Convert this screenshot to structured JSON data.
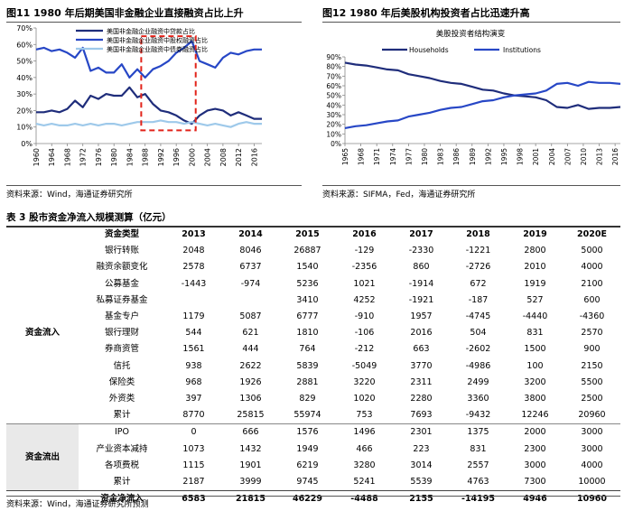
{
  "fig11": {
    "title": "图11 1980 年后期美国非金融企业直接融资占比上升",
    "source": "资料来源：Wind，海通证券研究所",
    "chart_data": {
      "type": "line",
      "x": [
        1960,
        1962,
        1964,
        1966,
        1968,
        1970,
        1972,
        1974,
        1976,
        1978,
        1980,
        1982,
        1984,
        1986,
        1988,
        1990,
        1992,
        1994,
        1996,
        1998,
        2000,
        2002,
        2004,
        2006,
        2008,
        2010,
        2012,
        2014,
        2016,
        2018
      ],
      "x_tick_labels": [
        "1960",
        "1964",
        "1968",
        "1972",
        "1976",
        "1980",
        "1984",
        "1988",
        "1992",
        "1996",
        "2000",
        "2004",
        "2008",
        "2012",
        "2016"
      ],
      "y_tick_labels": [
        "0%",
        "10%",
        "20%",
        "30%",
        "40%",
        "50%",
        "60%",
        "70%"
      ],
      "ylim": [
        0,
        70
      ],
      "series": [
        {
          "name": "美国非金融企业融资中贷款占比",
          "color": "#1f2d7b",
          "values": [
            19,
            19,
            20,
            19,
            21,
            26,
            22,
            29,
            27,
            30,
            29,
            29,
            34,
            28,
            30,
            24,
            20,
            19,
            17,
            14,
            12,
            17,
            20,
            21,
            20,
            17,
            19,
            17,
            15,
            15
          ]
        },
        {
          "name": "美国非金融企业融资中股权融资占比",
          "color": "#2747c6",
          "values": [
            57,
            58,
            56,
            57,
            55,
            52,
            58,
            44,
            46,
            43,
            43,
            48,
            40,
            45,
            40,
            45,
            47,
            50,
            55,
            58,
            62,
            50,
            48,
            46,
            52,
            55,
            54,
            56,
            57,
            57
          ]
        },
        {
          "name": "美国非金融企业融资中债券融资占比",
          "color": "#9ec9ea",
          "values": [
            12,
            11,
            12,
            11,
            11,
            12,
            11,
            12,
            11,
            12,
            12,
            11,
            12,
            13,
            13,
            13,
            14,
            13,
            13,
            12,
            13,
            12,
            11,
            12,
            11,
            10,
            12,
            13,
            12,
            12
          ]
        }
      ],
      "highlight": {
        "from": 1987,
        "to": 2001,
        "color": "#e2231a"
      }
    }
  },
  "fig12": {
    "title": "图12 1980 年后美股机构投资者占比迅速升高",
    "source": "资料来源：SIFMA，Fed，海通证券研究所",
    "chart_data": {
      "type": "line",
      "title": "美股投资者结构演变",
      "x": [
        1965,
        1967,
        1969,
        1971,
        1973,
        1975,
        1977,
        1979,
        1981,
        1983,
        1985,
        1987,
        1989,
        1991,
        1993,
        1995,
        1997,
        1999,
        2001,
        2003,
        2005,
        2007,
        2009,
        2011,
        2013,
        2015,
        2017
      ],
      "x_tick_labels": [
        "1965",
        "1968",
        "1971",
        "1974",
        "1977",
        "1980",
        "1983",
        "1986",
        "1989",
        "1992",
        "1995",
        "1998",
        "2001",
        "2004",
        "2007",
        "2010",
        "2013",
        "2016"
      ],
      "y_tick_labels": [
        "0%",
        "10%",
        "20%",
        "30%",
        "40%",
        "50%",
        "60%",
        "70%",
        "80%",
        "90%"
      ],
      "ylim": [
        0,
        90
      ],
      "series": [
        {
          "name": "Households",
          "color": "#1f2d7b",
          "values": [
            84,
            82,
            81,
            79,
            77,
            76,
            72,
            70,
            68,
            65,
            63,
            62,
            59,
            56,
            55,
            52,
            50,
            49,
            48,
            45,
            38,
            37,
            40,
            36,
            37,
            37,
            38
          ]
        },
        {
          "name": "Institutions",
          "color": "#2747c6",
          "values": [
            16,
            18,
            19,
            21,
            23,
            24,
            28,
            30,
            32,
            35,
            37,
            38,
            41,
            44,
            45,
            48,
            50,
            51,
            52,
            55,
            62,
            63,
            60,
            64,
            63,
            63,
            62
          ]
        }
      ]
    }
  },
  "table3": {
    "title": "表 3 股市资金净流入规模测算（亿元）",
    "source": "资料来源：Wind，海通证券研究所预测",
    "header": [
      "资金类型",
      "2013",
      "2014",
      "2015",
      "2016",
      "2017",
      "2018",
      "2019",
      "2020E"
    ],
    "groups": {
      "inflow": "资金流入",
      "outflow": "资金流出"
    },
    "inflow_rows": [
      {
        "label": "银行转账",
        "values": [
          "2048",
          "8046",
          "26887",
          "-129",
          "-2330",
          "-1221",
          "2800",
          "5000"
        ]
      },
      {
        "label": "融资余额变化",
        "values": [
          "2578",
          "6737",
          "1540",
          "-2356",
          "860",
          "-2726",
          "2010",
          "4000"
        ]
      },
      {
        "label": "公募基金",
        "values": [
          "-1443",
          "-974",
          "5236",
          "1021",
          "-1914",
          "672",
          "1919",
          "2100"
        ]
      },
      {
        "label": "私募证券基金",
        "values": [
          "",
          "",
          "3410",
          "4252",
          "-1921",
          "-187",
          "527",
          "600"
        ]
      },
      {
        "label": "基金专户",
        "values": [
          "1179",
          "5087",
          "6777",
          "-910",
          "1957",
          "-4745",
          "-4440",
          "-4360"
        ]
      },
      {
        "label": "银行理财",
        "values": [
          "544",
          "621",
          "1810",
          "-106",
          "2016",
          "504",
          "831",
          "2570"
        ]
      },
      {
        "label": "券商资管",
        "values": [
          "1561",
          "444",
          "764",
          "-212",
          "663",
          "-2602",
          "1500",
          "900"
        ]
      },
      {
        "label": "信托",
        "values": [
          "938",
          "2622",
          "5839",
          "-5049",
          "3770",
          "-4986",
          "100",
          "2150"
        ]
      },
      {
        "label": "保险类",
        "values": [
          "968",
          "1926",
          "2881",
          "3220",
          "2311",
          "2499",
          "3200",
          "5500"
        ]
      },
      {
        "label": "外资类",
        "values": [
          "397",
          "1306",
          "829",
          "1020",
          "2280",
          "3360",
          "3800",
          "2500"
        ]
      },
      {
        "label": "累计",
        "values": [
          "8770",
          "25815",
          "55974",
          "753",
          "7693",
          "-9432",
          "12246",
          "20960"
        ]
      }
    ],
    "outflow_rows": [
      {
        "label": "IPO",
        "values": [
          "0",
          "666",
          "1576",
          "1496",
          "2301",
          "1375",
          "2000",
          "3000"
        ]
      },
      {
        "label": "产业资本减持",
        "values": [
          "1073",
          "1432",
          "1949",
          "466",
          "223",
          "831",
          "2300",
          "3000"
        ]
      },
      {
        "label": "各项费税",
        "values": [
          "1115",
          "1901",
          "6219",
          "3280",
          "3014",
          "2557",
          "3000",
          "4000"
        ]
      },
      {
        "label": "累计",
        "values": [
          "2187",
          "3999",
          "9745",
          "5241",
          "5539",
          "4763",
          "7300",
          "10000"
        ]
      }
    ],
    "total_row": {
      "label": "资金净流入",
      "values": [
        "6583",
        "21815",
        "46229",
        "-4488",
        "2155",
        "-14195",
        "4946",
        "10960"
      ]
    }
  }
}
